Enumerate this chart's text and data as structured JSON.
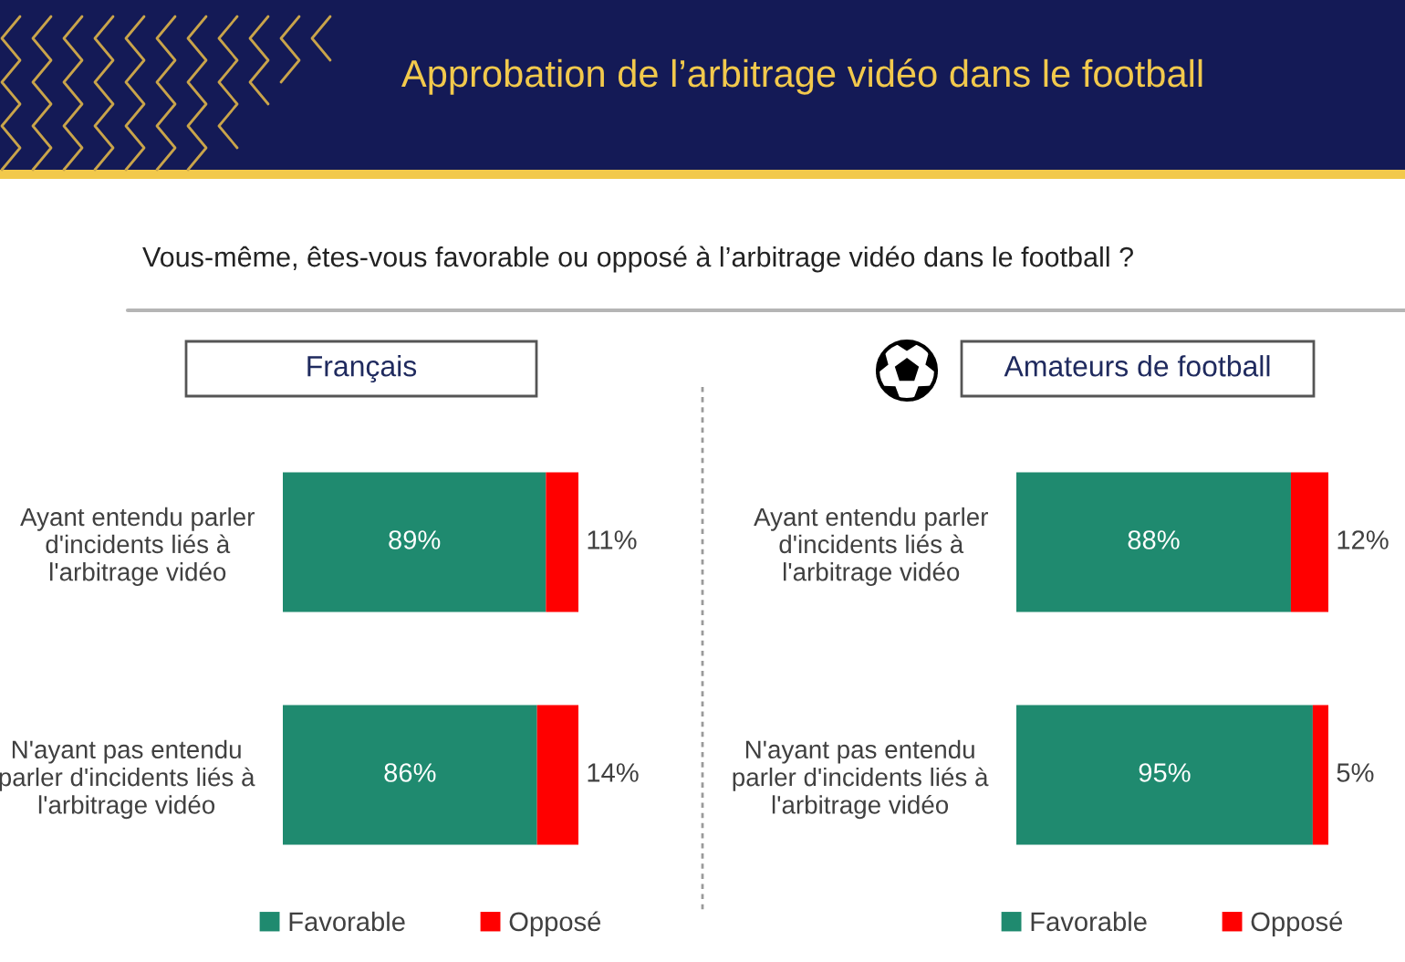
{
  "chart_data": [
    {
      "type": "bar",
      "orientation": "horizontal",
      "stacked": true,
      "title": "Français",
      "annotations": [
        "Approbation de l’arbitrage vidéo dans le football",
        "Vous-même, êtes-vous favorable ou opposé à l’arbitrage vidéo dans le football ?"
      ],
      "categories": [
        "Ayant entendu parler\nd'incidents liés à\nl'arbitrage vidéo",
        "N'ayant pas entendu\nparler d'incidents liés à\nl'arbitrage vidéo"
      ],
      "series": [
        {
          "name": "Favorable",
          "color": "#1f8a6f",
          "values": [
            89,
            86
          ],
          "value_labels": [
            "89%",
            "86%"
          ]
        },
        {
          "name": "Opposé",
          "color": "#ff0000",
          "values": [
            11,
            14
          ],
          "value_labels": [
            "11%",
            "14%"
          ]
        }
      ],
      "xlim": [
        0,
        100
      ],
      "tick_labels": "y",
      "legend": "bottom"
    },
    {
      "type": "bar",
      "orientation": "horizontal",
      "stacked": true,
      "title": "Amateurs de football",
      "categories": [
        "Ayant entendu parler\nd'incidents liés à\nl'arbitrage vidéo",
        "N'ayant pas entendu\nparler d'incidents liés à\nl'arbitrage vidéo"
      ],
      "series": [
        {
          "name": "Favorable",
          "color": "#1f8a6f",
          "values": [
            88,
            95
          ],
          "value_labels": [
            "88%",
            "95%"
          ]
        },
        {
          "name": "Opposé",
          "color": "#ff0000",
          "values": [
            12,
            5
          ],
          "value_labels": [
            "12%",
            "5%"
          ]
        }
      ],
      "xlim": [
        0,
        100
      ],
      "tick_labels": "y",
      "legend": "bottom"
    }
  ]
}
